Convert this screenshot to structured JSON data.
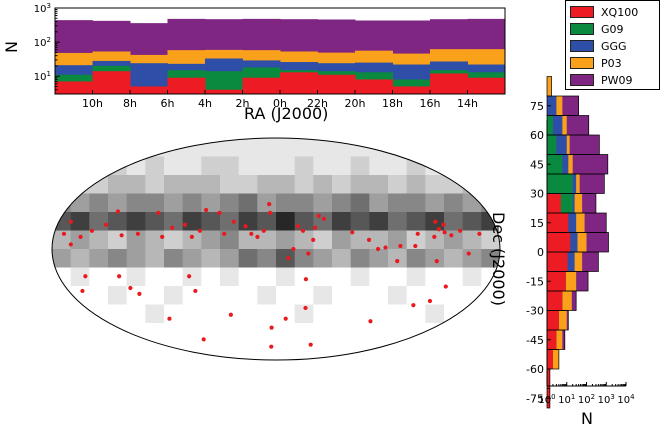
{
  "chart_data": [
    {
      "type": "area",
      "subtype": "stacked-step-histogram",
      "xlabel": "RA (J2000)",
      "ylabel": "N",
      "yscale": "log",
      "x_tick_labels": [
        "10h",
        "8h",
        "6h",
        "4h",
        "2h",
        "0h",
        "22h",
        "20h",
        "18h",
        "16h",
        "14h"
      ],
      "y_tick_labels": [
        {
          "base": "10",
          "exp": "1"
        },
        {
          "base": "10",
          "exp": "2"
        },
        {
          "base": "10",
          "exp": "3"
        }
      ],
      "ylim": [
        3,
        1000
      ],
      "bins": 12,
      "series": [
        {
          "name": "XQ100",
          "cumulative": [
            7,
            14,
            5,
            9,
            4,
            9,
            13,
            11,
            8,
            5,
            12,
            9
          ]
        },
        {
          "name": "G09",
          "cumulative": [
            11,
            20,
            5,
            15,
            14,
            18,
            15,
            14,
            13,
            8,
            15,
            13
          ]
        },
        {
          "name": "GGG",
          "cumulative": [
            21,
            28,
            24,
            23,
            33,
            29,
            26,
            24,
            25,
            22,
            27,
            22
          ]
        },
        {
          "name": "P03",
          "cumulative": [
            48,
            53,
            42,
            58,
            59,
            58,
            53,
            49,
            56,
            46,
            62,
            62
          ]
        },
        {
          "name": "PW09",
          "cumulative": [
            440,
            420,
            360,
            480,
            470,
            480,
            470,
            460,
            430,
            430,
            470,
            480
          ]
        }
      ],
      "grid": false
    },
    {
      "type": "heatmap",
      "subtype": "mollweide-sky-map",
      "grey_rows": [
        [
          1,
          1,
          1,
          1,
          1,
          1,
          1,
          1,
          1,
          1,
          1,
          1,
          1,
          1,
          1,
          1,
          1,
          1,
          1,
          1,
          1,
          1,
          1,
          1
        ],
        [
          2,
          1,
          1,
          2,
          1,
          2,
          1,
          1,
          2,
          2,
          1,
          1,
          1,
          2,
          1,
          1,
          2,
          1,
          1,
          2,
          1,
          2,
          1,
          1
        ],
        [
          3,
          2,
          2,
          3,
          3,
          2,
          3,
          3,
          3,
          2,
          2,
          3,
          3,
          2,
          3,
          2,
          3,
          3,
          2,
          3,
          2,
          2,
          3,
          2
        ],
        [
          5,
          4,
          5,
          4,
          5,
          5,
          4,
          5,
          4,
          5,
          6,
          4,
          5,
          5,
          4,
          5,
          6,
          4,
          5,
          5,
          4,
          5,
          4,
          5
        ],
        [
          7,
          8,
          6,
          7,
          8,
          7,
          6,
          8,
          7,
          6,
          8,
          7,
          9,
          7,
          6,
          8,
          7,
          8,
          6,
          7,
          8,
          6,
          7,
          8
        ],
        [
          3,
          4,
          3,
          2,
          4,
          3,
          2,
          3,
          4,
          5,
          3,
          3,
          4,
          3,
          2,
          4,
          3,
          3,
          4,
          2,
          3,
          4,
          3,
          2
        ],
        [
          4,
          3,
          4,
          5,
          4,
          3,
          5,
          4,
          3,
          4,
          6,
          5,
          7,
          5,
          4,
          3,
          5,
          4,
          3,
          5,
          4,
          3,
          4,
          5
        ],
        [
          0,
          1,
          0,
          0,
          1,
          0,
          0,
          1,
          0,
          1,
          0,
          0,
          1,
          0,
          0,
          0,
          1,
          0,
          0,
          1,
          0,
          0,
          1,
          0
        ],
        [
          0,
          0,
          0,
          1,
          0,
          0,
          1,
          0,
          0,
          0,
          0,
          1,
          0,
          0,
          1,
          0,
          0,
          0,
          1,
          0,
          0,
          0,
          0,
          0
        ],
        [
          0,
          0,
          0,
          0,
          0,
          1,
          0,
          0,
          0,
          0,
          0,
          0,
          0,
          1,
          0,
          0,
          0,
          0,
          0,
          0,
          1,
          0,
          0,
          0
        ],
        [
          0,
          0,
          0,
          0,
          0,
          0,
          0,
          0,
          0,
          0,
          0,
          0,
          0,
          0,
          0,
          0,
          0,
          0,
          0,
          0,
          0,
          0,
          0,
          0
        ],
        [
          0,
          0,
          0,
          0,
          0,
          0,
          0,
          0,
          0,
          0,
          0,
          0,
          0,
          0,
          0,
          0,
          0,
          0,
          0,
          0,
          0,
          0,
          0,
          0
        ]
      ],
      "points": [
        {
          "lon": 165,
          "lat": 10
        },
        {
          "lon": 150,
          "lat": 12
        },
        {
          "lon": 142,
          "lat": 9
        },
        {
          "lon": 138,
          "lat": 16
        },
        {
          "lon": 137,
          "lat": 11
        },
        {
          "lon": 133,
          "lat": 13
        },
        {
          "lon": 132,
          "lat": 18
        },
        {
          "lon": 128,
          "lat": 8
        },
        {
          "lon": 155,
          "lat": -3
        },
        {
          "lon": 130,
          "lat": -8
        },
        {
          "lon": 115,
          "lat": 10
        },
        {
          "lon": 112,
          "lat": 2
        },
        {
          "lon": 100,
          "lat": 2
        },
        {
          "lon": 98,
          "lat": -8
        },
        {
          "lon": 88,
          "lat": 1
        },
        {
          "lon": 82,
          "lat": 0
        },
        {
          "lon": 75,
          "lat": 6
        },
        {
          "lon": 62,
          "lat": 11
        },
        {
          "lon": 40,
          "lat": 20
        },
        {
          "lon": 36,
          "lat": 22
        },
        {
          "lon": 32,
          "lat": 14
        },
        {
          "lon": 30,
          "lat": 6
        },
        {
          "lon": 22,
          "lat": 12
        },
        {
          "lon": 18,
          "lat": 15
        },
        {
          "lon": 26,
          "lat": -3
        },
        {
          "lon": 14,
          "lat": 0
        },
        {
          "lon": 10,
          "lat": -6
        },
        {
          "lon": -5,
          "lat": 24
        },
        {
          "lon": -6,
          "lat": 30
        },
        {
          "lon": -10,
          "lat": 12
        },
        {
          "lon": -15,
          "lat": 8
        },
        {
          "lon": -20,
          "lat": 10
        },
        {
          "lon": -25,
          "lat": 15
        },
        {
          "lon": -35,
          "lat": 18
        },
        {
          "lon": -42,
          "lat": 10
        },
        {
          "lon": -48,
          "lat": 24
        },
        {
          "lon": -60,
          "lat": 26
        },
        {
          "lon": -62,
          "lat": 12
        },
        {
          "lon": -68,
          "lat": 8
        },
        {
          "lon": -75,
          "lat": 16
        },
        {
          "lon": -85,
          "lat": 14
        },
        {
          "lon": -92,
          "lat": 8
        },
        {
          "lon": -100,
          "lat": 24
        },
        {
          "lon": -112,
          "lat": 10
        },
        {
          "lon": -125,
          "lat": 9
        },
        {
          "lon": -135,
          "lat": 25
        },
        {
          "lon": -140,
          "lat": 16
        },
        {
          "lon": -150,
          "lat": 12
        },
        {
          "lon": -158,
          "lat": 8
        },
        {
          "lon": -165,
          "lat": 3
        },
        {
          "lon": -170,
          "lat": 18
        },
        {
          "lon": -172,
          "lat": 10
        },
        {
          "lon": 140,
          "lat": -35
        },
        {
          "lon": 128,
          "lat": -38
        },
        {
          "lon": 145,
          "lat": -25
        },
        {
          "lon": 100,
          "lat": -50
        },
        {
          "lon": 55,
          "lat": -70
        },
        {
          "lon": 28,
          "lat": -40
        },
        {
          "lon": 10,
          "lat": -48
        },
        {
          "lon": -5,
          "lat": -55
        },
        {
          "lon": -8,
          "lat": -72
        },
        {
          "lon": 25,
          "lat": -20
        },
        {
          "lon": -45,
          "lat": -45
        },
        {
          "lon": -70,
          "lat": -28
        },
        {
          "lon": -72,
          "lat": -18
        },
        {
          "lon": -100,
          "lat": -65
        },
        {
          "lon": -110,
          "lat": -48
        },
        {
          "lon": -120,
          "lat": -30
        },
        {
          "lon": -125,
          "lat": -26
        },
        {
          "lon": -130,
          "lat": -18
        },
        {
          "lon": -158,
          "lat": -18
        },
        {
          "lon": -168,
          "lat": -28
        }
      ],
      "point_color": "#e8191f"
    },
    {
      "type": "area",
      "subtype": "stacked-step-histogram-horizontal",
      "xlabel": "N",
      "ylabel": "Dec (J2000)",
      "xscale": "log",
      "xlim": [
        1,
        10000
      ],
      "x_tick_labels": [
        {
          "base": "10",
          "exp": "0"
        },
        {
          "base": "10",
          "exp": "1"
        },
        {
          "base": "10",
          "exp": "2"
        },
        {
          "base": "10",
          "exp": "3"
        },
        {
          "base": "10",
          "exp": "4"
        }
      ],
      "y_tick_labels": [
        "75",
        "60",
        "45",
        "30",
        "15",
        "0",
        "-15",
        "-30",
        "-45",
        "-60",
        "-75"
      ],
      "dec_bins": [
        [
          80,
          90
        ],
        [
          70,
          80
        ],
        [
          60,
          70
        ],
        [
          50,
          60
        ],
        [
          40,
          50
        ],
        [
          30,
          40
        ],
        [
          20,
          30
        ],
        [
          10,
          20
        ],
        [
          0,
          10
        ],
        [
          -10,
          0
        ],
        [
          -20,
          -10
        ],
        [
          -30,
          -20
        ],
        [
          -40,
          -30
        ],
        [
          -50,
          -40
        ],
        [
          -60,
          -50
        ],
        [
          -70,
          -60
        ],
        [
          -80,
          -70
        ]
      ],
      "series": [
        {
          "name": "XQ100",
          "cumulative": [
            1,
            1,
            1,
            1,
            1,
            1,
            5,
            12,
            15,
            11,
            9,
            6,
            4,
            3,
            2,
            1.4,
            1.4
          ]
        },
        {
          "name": "G09",
          "cumulative": [
            1,
            1,
            2,
            3,
            6,
            20,
            20,
            12,
            15,
            11,
            9,
            6,
            4,
            3,
            2,
            1,
            1
          ]
        },
        {
          "name": "GGG",
          "cumulative": [
            1,
            3,
            6,
            10,
            12,
            30,
            25,
            30,
            35,
            25,
            9,
            6,
            4,
            3,
            2,
            1,
            1
          ]
        },
        {
          "name": "P03",
          "cumulative": [
            1.7,
            6,
            10,
            14,
            20,
            45,
            60,
            80,
            100,
            60,
            30,
            18,
            10,
            6,
            4,
            1,
            1
          ]
        },
        {
          "name": "PW09",
          "cumulative": [
            1,
            40,
            130,
            450,
            1200,
            800,
            300,
            1000,
            1300,
            400,
            120,
            30,
            12,
            8,
            4,
            1,
            1
          ]
        }
      ]
    }
  ],
  "legend": {
    "items": [
      {
        "label": "XQ100",
        "color": "#ed1c24"
      },
      {
        "label": "G09",
        "color": "#0a8a3e"
      },
      {
        "label": "GGG",
        "color": "#2e4ea7"
      },
      {
        "label": "P03",
        "color": "#f9a11b"
      },
      {
        "label": "PW09",
        "color": "#7f2682"
      }
    ]
  }
}
